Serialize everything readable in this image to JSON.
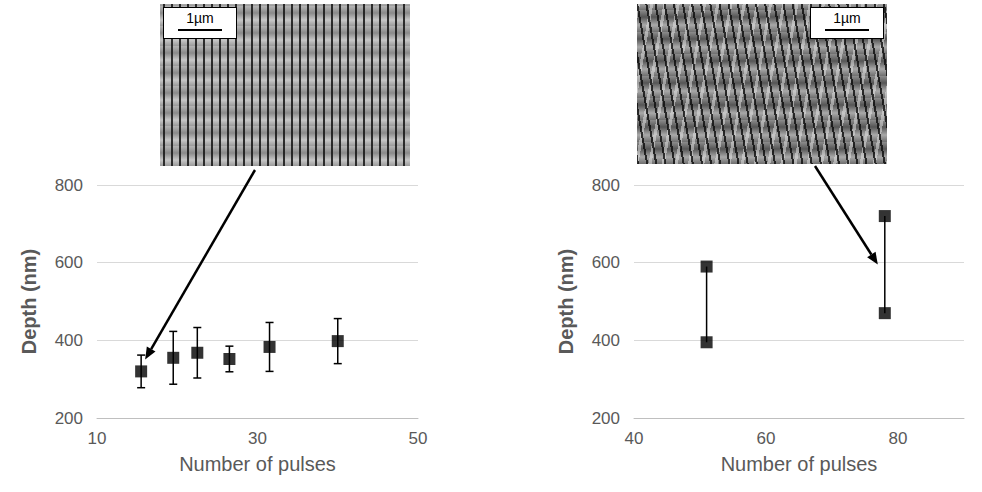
{
  "chart_data": [
    {
      "type": "scatter",
      "x": [
        15.5,
        19.5,
        22.5,
        26.5,
        31.5,
        40
      ],
      "values": [
        320,
        355,
        368,
        352,
        383,
        398
      ],
      "errors": [
        42,
        68,
        65,
        33,
        63,
        58
      ],
      "color": "#000000",
      "marker": "square",
      "xlabel": "Number of pulses",
      "ylabel": "Depth (nm)",
      "xlim": [
        10,
        50
      ],
      "xticks": [
        10,
        30,
        50
      ],
      "ylim": [
        200,
        800
      ],
      "yticks": [
        200,
        400,
        600,
        800
      ],
      "grid": true,
      "inset_scale_bar": "1µm"
    },
    {
      "type": "range",
      "x": [
        51,
        78
      ],
      "low": [
        395,
        470
      ],
      "high": [
        590,
        720
      ],
      "color": "#000000",
      "marker": "square",
      "xlabel": "Number of pulses",
      "ylabel": "Depth (nm)",
      "xlim": [
        40,
        90
      ],
      "xticks": [
        40,
        60,
        80
      ],
      "ylim": [
        200,
        800
      ],
      "yticks": [
        200,
        400,
        600,
        800
      ],
      "grid": true,
      "inset_scale_bar": "1µm"
    }
  ]
}
